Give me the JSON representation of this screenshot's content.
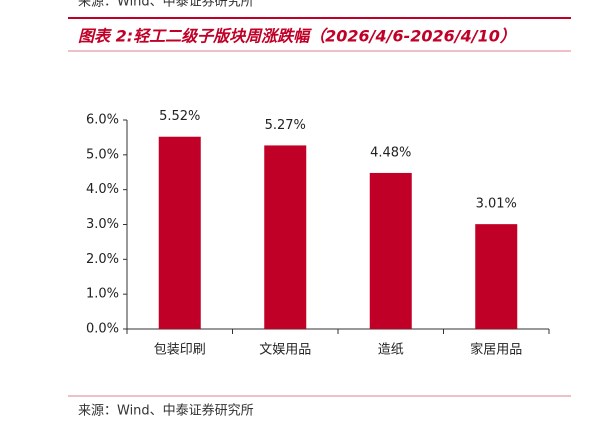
{
  "header_source": "来源：Wind、中泰证券研究所",
  "chart_data": {
    "type": "bar",
    "title": "图表 2:轻工二级子版块周涨跌幅（2026/4/6-2026/4/10）",
    "categories": [
      "包装印刷",
      "文娱用品",
      "造纸",
      "家居用品"
    ],
    "values": [
      5.52,
      5.27,
      4.48,
      3.01
    ],
    "value_labels": [
      "5.52%",
      "5.27%",
      "4.48%",
      "3.01%"
    ],
    "color": "#c00027",
    "ylim": [
      0,
      6
    ],
    "yticks": [
      {
        "value": 0,
        "label": "0.0%"
      },
      {
        "value": 1,
        "label": "1.0%"
      },
      {
        "value": 2,
        "label": "2.0%"
      },
      {
        "value": 3,
        "label": "3.0%"
      },
      {
        "value": 4,
        "label": "4.0%"
      },
      {
        "value": 5,
        "label": "5.0%"
      },
      {
        "value": 6,
        "label": "6.0%"
      }
    ],
    "grid": false,
    "source": "来源：Wind、中泰证券研究所"
  }
}
